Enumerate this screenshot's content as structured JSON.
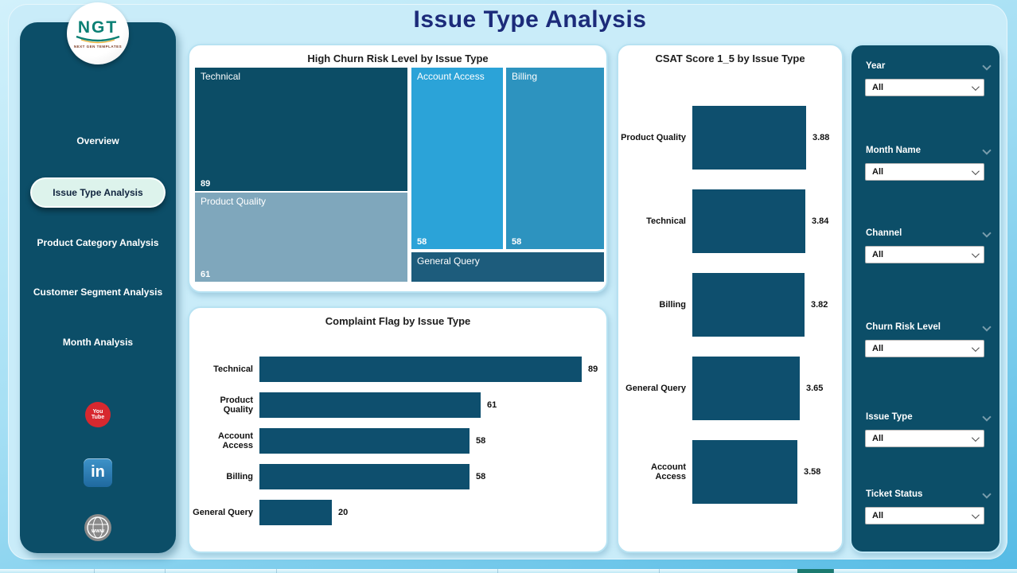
{
  "page_title": "Issue Type Analysis",
  "logo": {
    "text": "NGT",
    "subtext": "NEXT GEN TEMPLATES"
  },
  "sidebar": {
    "items": [
      {
        "label": "Overview",
        "active": false
      },
      {
        "label": "Issue Type Analysis",
        "active": true
      },
      {
        "label": "Product Category Analysis",
        "active": false
      },
      {
        "label": "Customer Segment Analysis",
        "active": false
      },
      {
        "label": "Month Analysis",
        "active": false
      }
    ],
    "social": [
      {
        "name": "youtube",
        "line1": "You",
        "line2": "Tube"
      },
      {
        "name": "linkedin",
        "text": "in"
      },
      {
        "name": "website",
        "text": "www"
      }
    ]
  },
  "chart_data": [
    {
      "type": "treemap",
      "title": "High Churn Risk Level by Issue Type",
      "items": [
        {
          "label": "Technical",
          "value": 89,
          "color": "#0c4d66"
        },
        {
          "label": "Product Quality",
          "value": 61,
          "color": "#7fa7bc"
        },
        {
          "label": "Account Access",
          "value": 58,
          "color": "#2ba3d8"
        },
        {
          "label": "Billing",
          "value": 58,
          "color": "#2d93bf"
        },
        {
          "label": "General Query",
          "value": null,
          "color": "#1d5c7c"
        }
      ]
    },
    {
      "type": "bar",
      "orientation": "horizontal",
      "title": "Complaint Flag by Issue Type",
      "categories": [
        "Technical",
        "Product Quality",
        "Account Access",
        "Billing",
        "General Query"
      ],
      "values": [
        89,
        61,
        58,
        58,
        20
      ],
      "bar_color": "#0e4f6e",
      "xlim": [
        0,
        95
      ],
      "grid": false,
      "legend": false
    },
    {
      "type": "bar",
      "orientation": "horizontal",
      "title": "CSAT Score 1_5 by Issue Type",
      "categories": [
        "Product Quality",
        "Technical",
        "Billing",
        "General Query",
        "Account Access"
      ],
      "values": [
        3.88,
        3.84,
        3.82,
        3.65,
        3.58
      ],
      "bar_color": "#0e4f6e",
      "xlim": [
        0,
        4.2
      ],
      "grid": false,
      "legend": false
    }
  ],
  "filters": [
    {
      "label": "Year",
      "value": "All"
    },
    {
      "label": "Month Name",
      "value": "All"
    },
    {
      "label": "Channel",
      "value": "All"
    },
    {
      "label": "Churn Risk Level",
      "value": "All"
    },
    {
      "label": "Issue Type",
      "value": "All"
    },
    {
      "label": "Ticket Status",
      "value": "All"
    }
  ],
  "colors": {
    "sidebar_bg": "#0c4e68",
    "canvas_bg": "#c9ecf9",
    "card_border": "#b7e2f2",
    "bar_color": "#0e4f6e",
    "title_color": "#1c2b7a",
    "active_item_bg": "#ddf3ec",
    "youtube_red": "#d7282f",
    "linkedin_blue": "#2d7bb5",
    "globe_gray": "#8a8a8a",
    "page_tab_teal": "#1b7a70"
  }
}
